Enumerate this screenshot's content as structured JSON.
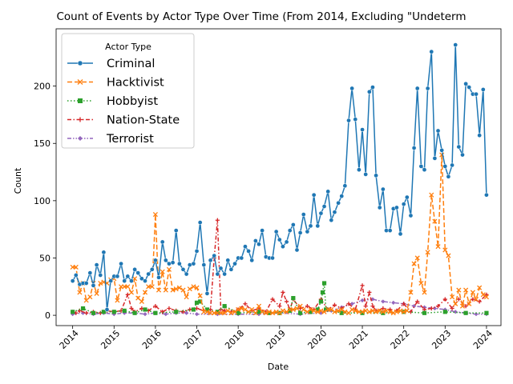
{
  "chart_data": {
    "type": "line",
    "title": "Count of Events by Actor Type Over Time (From 2014, Excluding \"Undeterm",
    "xlabel": "Date",
    "ylabel": "Count",
    "xlim": [
      2013.6,
      2024.35
    ],
    "ylim": [
      -9,
      250
    ],
    "x_ticks": [
      2014,
      2015,
      2016,
      2017,
      2018,
      2019,
      2020,
      2021,
      2022,
      2023,
      2024
    ],
    "y_ticks": [
      0,
      50,
      100,
      150,
      200
    ],
    "grid": false,
    "legend": {
      "title": "Actor Type",
      "position": "top-left"
    },
    "series": [
      {
        "name": "Criminal",
        "color": "#1f77b4",
        "marker": "circle",
        "dash": "solid",
        "x": [
          2014.0,
          2014.08,
          2014.17,
          2014.25,
          2014.33,
          2014.42,
          2014.5,
          2014.58,
          2014.67,
          2014.75,
          2014.83,
          2014.92,
          2015.0,
          2015.08,
          2015.17,
          2015.25,
          2015.33,
          2015.42,
          2015.5,
          2015.58,
          2015.67,
          2015.75,
          2015.83,
          2015.92,
          2016.0,
          2016.08,
          2016.17,
          2016.25,
          2016.33,
          2016.42,
          2016.5,
          2016.58,
          2016.67,
          2016.75,
          2016.83,
          2016.92,
          2017.0,
          2017.08,
          2017.17,
          2017.25,
          2017.33,
          2017.42,
          2017.5,
          2017.58,
          2017.67,
          2017.75,
          2017.83,
          2017.92,
          2018.0,
          2018.08,
          2018.17,
          2018.25,
          2018.33,
          2018.42,
          2018.5,
          2018.58,
          2018.67,
          2018.75,
          2018.83,
          2018.92,
          2019.0,
          2019.08,
          2019.17,
          2019.25,
          2019.33,
          2019.42,
          2019.5,
          2019.58,
          2019.67,
          2019.75,
          2019.83,
          2019.92,
          2020.0,
          2020.08,
          2020.17,
          2020.25,
          2020.33,
          2020.42,
          2020.5,
          2020.58,
          2020.67,
          2020.75,
          2020.83,
          2020.92,
          2021.0,
          2021.08,
          2021.17,
          2021.25,
          2021.33,
          2021.42,
          2021.5,
          2021.58,
          2021.67,
          2021.75,
          2021.83,
          2021.92,
          2022.0,
          2022.08,
          2022.17,
          2022.25,
          2022.33,
          2022.42,
          2022.5,
          2022.58,
          2022.67,
          2022.75,
          2022.83,
          2022.92,
          2023.0,
          2023.08,
          2023.17,
          2023.25,
          2023.33,
          2023.42,
          2023.5,
          2023.58,
          2023.67,
          2023.75,
          2023.83,
          2023.92,
          2024.0
        ],
        "y": [
          30,
          35,
          27,
          28,
          28,
          37,
          26,
          44,
          35,
          55,
          5,
          30,
          34,
          34,
          45,
          30,
          34,
          30,
          40,
          37,
          32,
          30,
          36,
          40,
          48,
          33,
          64,
          48,
          45,
          46,
          74,
          45,
          40,
          36,
          44,
          45,
          56,
          81,
          44,
          19,
          48,
          52,
          36,
          41,
          36,
          48,
          40,
          45,
          50,
          50,
          60,
          56,
          48,
          65,
          62,
          74,
          51,
          50,
          50,
          73,
          66,
          60,
          64,
          74,
          79,
          57,
          72,
          88,
          73,
          78,
          105,
          78,
          89,
          95,
          108,
          83,
          90,
          98,
          104,
          113,
          170,
          198,
          171,
          127,
          162,
          123,
          195,
          199,
          122,
          94,
          110,
          74,
          74,
          93,
          94,
          71,
          97,
          103,
          87,
          146,
          198,
          130,
          127,
          198,
          230,
          137,
          161,
          144,
          130,
          121,
          131,
          236,
          147,
          140,
          202,
          199,
          193,
          193,
          157,
          197,
          105
        ]
      },
      {
        "name": "Hacktivist",
        "color": "#ff7f0e",
        "marker": "x",
        "dash": "dashed",
        "x": [
          2014.0,
          2014.08,
          2014.17,
          2014.25,
          2014.33,
          2014.42,
          2014.5,
          2014.58,
          2014.67,
          2014.75,
          2014.83,
          2014.92,
          2015.0,
          2015.08,
          2015.17,
          2015.25,
          2015.33,
          2015.42,
          2015.5,
          2015.58,
          2015.67,
          2015.75,
          2015.83,
          2015.92,
          2016.0,
          2016.08,
          2016.17,
          2016.25,
          2016.33,
          2016.42,
          2016.5,
          2016.58,
          2016.67,
          2016.75,
          2016.83,
          2016.92,
          2017.0,
          2017.08,
          2017.17,
          2017.25,
          2017.33,
          2017.42,
          2017.5,
          2017.58,
          2017.67,
          2017.75,
          2017.83,
          2017.92,
          2018.0,
          2018.08,
          2018.17,
          2018.25,
          2018.33,
          2018.42,
          2018.5,
          2018.58,
          2018.67,
          2018.75,
          2018.83,
          2018.92,
          2019.0,
          2019.08,
          2019.17,
          2019.25,
          2019.33,
          2019.42,
          2019.5,
          2019.58,
          2019.67,
          2019.75,
          2019.83,
          2019.92,
          2020.0,
          2020.08,
          2020.17,
          2020.25,
          2020.33,
          2020.42,
          2020.5,
          2020.58,
          2020.67,
          2020.75,
          2020.83,
          2020.92,
          2021.0,
          2021.08,
          2021.17,
          2021.25,
          2021.33,
          2021.42,
          2021.5,
          2021.58,
          2021.67,
          2021.75,
          2021.83,
          2021.92,
          2022.0,
          2022.08,
          2022.17,
          2022.25,
          2022.33,
          2022.42,
          2022.5,
          2022.58,
          2022.67,
          2022.75,
          2022.83,
          2022.92,
          2023.0,
          2023.08,
          2023.17,
          2023.25,
          2023.33,
          2023.42,
          2023.5,
          2023.58,
          2023.67,
          2023.75,
          2023.83,
          2023.92,
          2024.0
        ],
        "y": [
          42,
          42,
          20,
          28,
          13,
          16,
          28,
          19,
          28,
          29,
          28,
          31,
          32,
          13,
          25,
          25,
          25,
          20,
          32,
          15,
          12,
          20,
          25,
          25,
          88,
          22,
          38,
          22,
          40,
          22,
          23,
          24,
          22,
          16,
          23,
          25,
          24,
          17,
          3,
          3,
          2,
          2,
          2,
          2,
          2,
          4,
          2,
          3,
          5,
          6,
          5,
          3,
          5,
          2,
          8,
          3,
          2,
          3,
          2,
          3,
          2,
          4,
          3,
          5,
          5,
          6,
          8,
          5,
          3,
          5,
          4,
          3,
          4,
          3,
          5,
          5,
          3,
          4,
          5,
          3,
          2,
          5,
          4,
          3,
          3,
          4,
          3,
          4,
          3,
          4,
          3,
          4,
          3,
          2,
          3,
          4,
          3,
          4,
          20,
          45,
          50,
          28,
          20,
          55,
          105,
          82,
          60,
          140,
          57,
          52,
          16,
          10,
          22,
          8,
          22,
          10,
          20,
          14,
          24,
          18,
          16
        ]
      },
      {
        "name": "Hobbyist",
        "color": "#2ca02c",
        "marker": "square",
        "dash": "dotted",
        "x": [
          2014.0,
          2014.25,
          2014.5,
          2014.75,
          2015.0,
          2015.25,
          2015.5,
          2015.75,
          2016.0,
          2016.5,
          2016.92,
          2017.0,
          2017.08,
          2017.25,
          2017.5,
          2017.67,
          2018.0,
          2018.5,
          2018.75,
          2019.0,
          2019.25,
          2019.33,
          2019.5,
          2019.75,
          2019.92,
          2020.0,
          2020.04,
          2020.08,
          2020.12,
          2020.5,
          2021.0,
          2021.5,
          2022.0,
          2022.5,
          2023.0,
          2023.5,
          2024.0
        ],
        "y": [
          3,
          6,
          2,
          3,
          3,
          4,
          2,
          5,
          2,
          3,
          5,
          11,
          12,
          5,
          3,
          8,
          2,
          3,
          2,
          2,
          4,
          15,
          2,
          3,
          5,
          12,
          20,
          28,
          5,
          2,
          2,
          2,
          3,
          2,
          3,
          2,
          2
        ]
      },
      {
        "name": "Nation-State",
        "color": "#d62728",
        "marker": "plus",
        "dash": "dashdot",
        "x": [
          2014.0,
          2014.08,
          2014.17,
          2014.33,
          2014.5,
          2014.67,
          2014.83,
          2015.0,
          2015.17,
          2015.33,
          2015.42,
          2015.5,
          2015.67,
          2015.83,
          2016.0,
          2016.17,
          2016.33,
          2016.5,
          2016.67,
          2016.83,
          2017.0,
          2017.17,
          2017.33,
          2017.42,
          2017.5,
          2017.58,
          2017.67,
          2017.83,
          2018.0,
          2018.17,
          2018.33,
          2018.5,
          2018.67,
          2018.83,
          2019.0,
          2019.08,
          2019.17,
          2019.25,
          2019.33,
          2019.5,
          2019.67,
          2019.83,
          2020.0,
          2020.17,
          2020.33,
          2020.5,
          2020.67,
          2020.83,
          2021.0,
          2021.08,
          2021.17,
          2021.25,
          2021.33,
          2021.5,
          2021.67,
          2021.83,
          2022.0,
          2022.17,
          2022.33,
          2022.5,
          2022.67,
          2022.83,
          2023.0,
          2023.17,
          2023.33,
          2023.5,
          2023.67,
          2023.83,
          2024.0
        ],
        "y": [
          3,
          2,
          4,
          2,
          3,
          2,
          4,
          3,
          4,
          18,
          6,
          3,
          6,
          4,
          8,
          3,
          6,
          4,
          3,
          5,
          6,
          4,
          5,
          50,
          83,
          5,
          4,
          3,
          5,
          10,
          4,
          6,
          3,
          14,
          8,
          20,
          12,
          5,
          14,
          6,
          8,
          5,
          14,
          5,
          9,
          6,
          10,
          5,
          26,
          8,
          20,
          8,
          4,
          6,
          5,
          4,
          10,
          3,
          12,
          5,
          6,
          8,
          14,
          6,
          14,
          8,
          14,
          12,
          18
        ]
      },
      {
        "name": "Terrorist",
        "color": "#9467bd",
        "marker": "diamond",
        "dash": "dashdotdot",
        "x": [
          2014.0,
          2014.25,
          2014.5,
          2014.75,
          2015.0,
          2015.25,
          2015.5,
          2015.75,
          2016.0,
          2016.25,
          2016.5,
          2016.75,
          2017.0,
          2017.5,
          2018.0,
          2018.5,
          2019.0,
          2019.5,
          2020.0,
          2020.25,
          2020.5,
          2020.75,
          2021.0,
          2021.25,
          2021.5,
          2021.75,
          2022.0,
          2022.25,
          2022.5,
          2022.75,
          2023.0,
          2023.25,
          2023.5,
          2023.75,
          2024.0
        ],
        "y": [
          1,
          2,
          1,
          2,
          1,
          2,
          2,
          1,
          2,
          1,
          2,
          2,
          1,
          1,
          1,
          1,
          2,
          1,
          2,
          4,
          7,
          10,
          13,
          14,
          12,
          11,
          10,
          8,
          7,
          6,
          5,
          3,
          2,
          1,
          1
        ]
      }
    ]
  }
}
